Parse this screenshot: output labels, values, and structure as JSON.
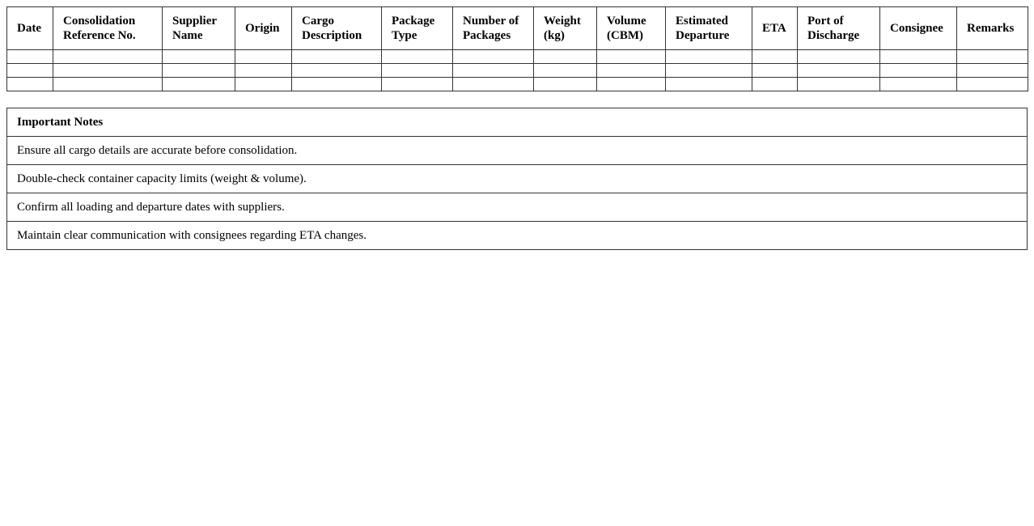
{
  "cargo_table": {
    "headers": [
      "Date",
      "Consolidation Reference No.",
      "Supplier Name",
      "Origin",
      "Cargo Description",
      "Package Type",
      "Number of Packages",
      "Weight (kg)",
      "Volume (CBM)",
      "Estimated Departure",
      "ETA",
      "Port of Discharge",
      "Consignee",
      "Remarks"
    ],
    "rows": [
      [
        "",
        "",
        "",
        "",
        "",
        "",
        "",
        "",
        "",
        "",
        "",
        "",
        "",
        ""
      ],
      [
        "",
        "",
        "",
        "",
        "",
        "",
        "",
        "",
        "",
        "",
        "",
        "",
        "",
        ""
      ],
      [
        "",
        "",
        "",
        "",
        "",
        "",
        "",
        "",
        "",
        "",
        "",
        "",
        "",
        ""
      ]
    ]
  },
  "notes": {
    "title": "Important Notes",
    "items": [
      "Ensure all cargo details are accurate before consolidation.",
      "Double-check container capacity limits (weight & volume).",
      "Confirm all loading and departure dates with suppliers.",
      "Maintain clear communication with consignees regarding ETA changes."
    ]
  }
}
